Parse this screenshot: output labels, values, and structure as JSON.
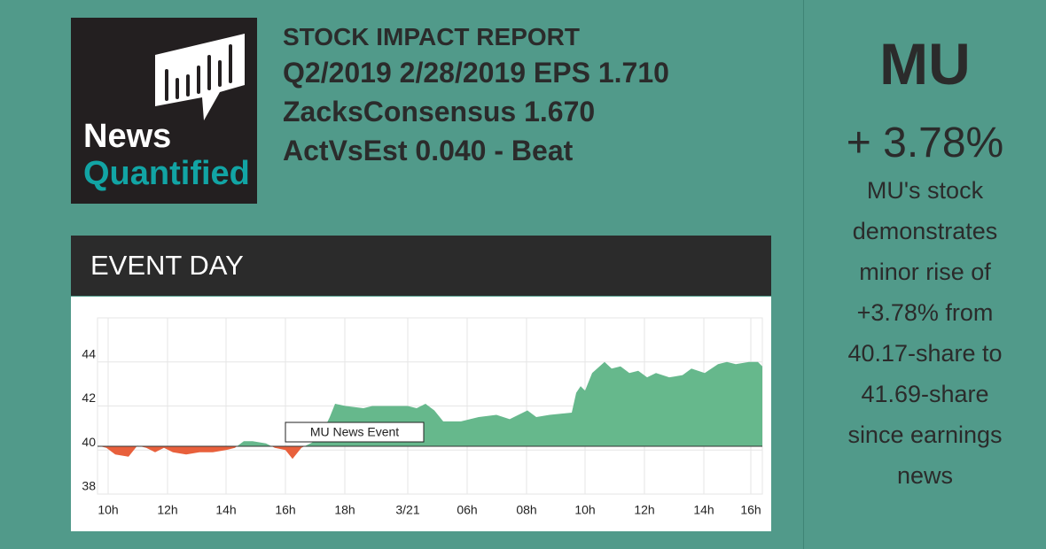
{
  "logo": {
    "line1": "News",
    "line2": "Quantified"
  },
  "header": {
    "lines": [
      "STOCK IMPACT REPORT",
      "Q2/2019 2/28/2019 EPS 1.710",
      "ZacksConsensus 1.670",
      "ActVsEst 0.040 - Beat"
    ]
  },
  "panel_title": "EVENT DAY",
  "chart_data": {
    "type": "area",
    "x": [
      0,
      1,
      2,
      3.5,
      4.5,
      5.5,
      6.5,
      7.5,
      8.5,
      10,
      11.5,
      13,
      14.5,
      15.5,
      16.5,
      17.5,
      19,
      20,
      21.2,
      22,
      23,
      25,
      26.2,
      26.8,
      28,
      30,
      31,
      33,
      35,
      36,
      37,
      38,
      39,
      41,
      43,
      45,
      46.5,
      48.5,
      49.5,
      51,
      53.5,
      54,
      54.5,
      55,
      55.8,
      57.2,
      58,
      59,
      60,
      61,
      62,
      63,
      64.5,
      66,
      67,
      68.5,
      70,
      71,
      72,
      73.5,
      74.5,
      75
    ],
    "values": [
      40.2,
      40.1,
      39.8,
      39.7,
      40.2,
      40.1,
      39.9,
      40.1,
      39.9,
      39.8,
      39.9,
      39.9,
      40.0,
      40.1,
      40.4,
      40.4,
      40.3,
      40.1,
      40.0,
      39.6,
      40.1,
      40.5,
      41.5,
      42.1,
      42.0,
      41.9,
      42.0,
      42.0,
      42.0,
      41.9,
      42.1,
      41.8,
      41.3,
      41.3,
      41.5,
      41.6,
      41.4,
      41.8,
      41.5,
      41.6,
      41.7,
      42.6,
      42.9,
      42.7,
      43.5,
      44.0,
      43.7,
      43.8,
      43.5,
      43.6,
      43.3,
      43.5,
      43.3,
      43.4,
      43.7,
      43.5,
      43.9,
      44.0,
      43.9,
      44.0,
      44.0,
      43.8
    ],
    "baseline": 40.17,
    "up_color": "#66b88c",
    "down_color": "#e8603c",
    "annotation": {
      "text": "MU News Event",
      "x": 21.2
    },
    "xlim": [
      0,
      75
    ],
    "xticks": [
      {
        "value": 1.2,
        "label": "10h"
      },
      {
        "value": 7.9,
        "label": "12h"
      },
      {
        "value": 14.5,
        "label": "14h"
      },
      {
        "value": 21.2,
        "label": "16h"
      },
      {
        "value": 27.9,
        "label": "18h"
      },
      {
        "value": 35,
        "label": "3/21"
      },
      {
        "value": 41.7,
        "label": "06h"
      },
      {
        "value": 48.4,
        "label": "08h"
      },
      {
        "value": 55,
        "label": "10h"
      },
      {
        "value": 61.7,
        "label": "12h"
      },
      {
        "value": 68.4,
        "label": "14h"
      },
      {
        "value": 73.7,
        "label": "16h"
      }
    ],
    "ylim": [
      38,
      46
    ],
    "yticks": [
      38,
      40,
      42,
      44
    ],
    "grid": true
  },
  "sidebar": {
    "ticker": "MU",
    "change": "+ 3.78%",
    "description": [
      "MU's stock",
      "demonstrates",
      "minor rise of",
      "+3.78% from",
      "40.17-share to",
      "41.69-share",
      "since earnings",
      "news"
    ]
  }
}
